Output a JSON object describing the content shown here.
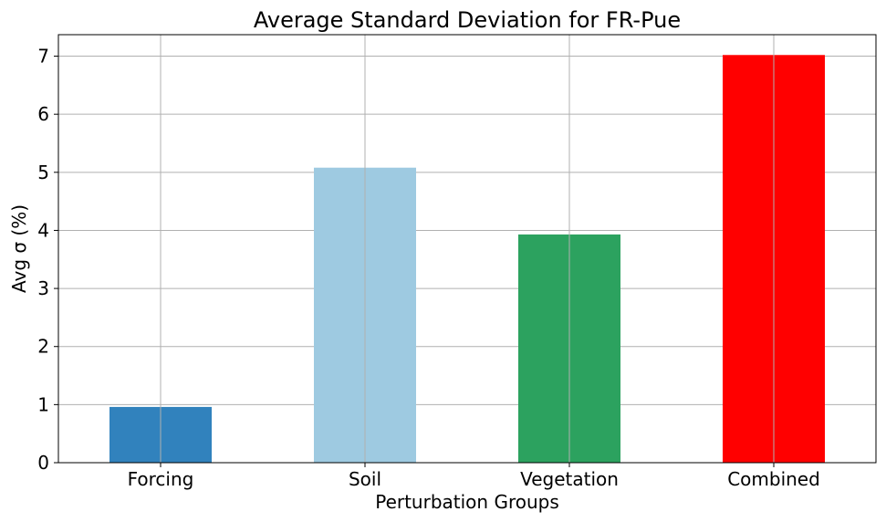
{
  "chart_data": {
    "type": "bar",
    "title": "Average Standard Deviation for FR-Pue",
    "xlabel": "Perturbation Groups",
    "ylabel": "Avg σ (%)",
    "categories": [
      "Forcing",
      "Soil",
      "Vegetation",
      "Combined"
    ],
    "values": [
      0.96,
      5.08,
      3.93,
      7.02
    ],
    "colors": [
      "#3182bd",
      "#9ecae1",
      "#2ca25f",
      "#ff0000"
    ],
    "ylim": [
      0,
      7.37
    ],
    "yticks": [
      "0",
      "1",
      "2",
      "3",
      "4",
      "5",
      "6",
      "7"
    ],
    "grid": true
  }
}
